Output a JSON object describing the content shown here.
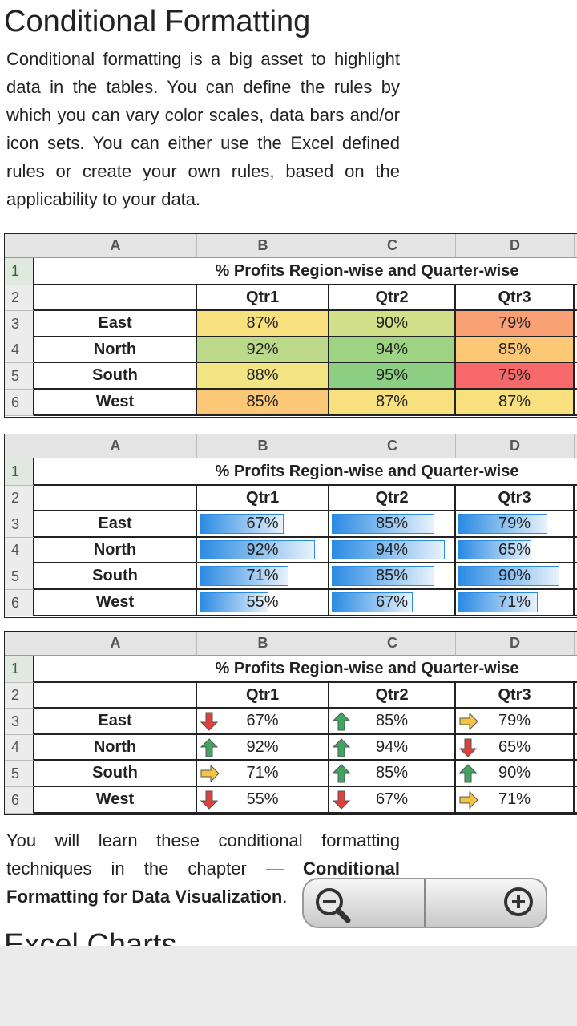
{
  "heading": "Conditional Formatting",
  "intro": "Conditional formatting is a big asset to highlight data in the tables. You can define the rules by which you can vary color scales, data bars and/or icon sets. You can either use the Excel defined rules or create your own rules, based on the applicability to your data.",
  "tables": [
    {
      "style": "color-scale",
      "columns": [
        "A",
        "B",
        "C",
        "D"
      ],
      "row_numbers": [
        1,
        2,
        3,
        4,
        5,
        6
      ],
      "title": "% Profits Region-wise and Quarter-wise",
      "quarters": [
        "Qtr1",
        "Qtr2",
        "Qtr3"
      ],
      "rows": [
        {
          "region": "East",
          "values": [
            "87%",
            "90%",
            "79%"
          ],
          "colors": [
            "#f9e07e",
            "#d3e08a",
            "#f9a074"
          ]
        },
        {
          "region": "North",
          "values": [
            "92%",
            "94%",
            "85%"
          ],
          "colors": [
            "#bcd98a",
            "#9fd384",
            "#fcc876"
          ]
        },
        {
          "region": "South",
          "values": [
            "88%",
            "95%",
            "75%"
          ],
          "colors": [
            "#f3e584",
            "#8ccf83",
            "#f8696b"
          ]
        },
        {
          "region": "West",
          "values": [
            "85%",
            "87%",
            "87%"
          ],
          "colors": [
            "#fbc878",
            "#f9e07e",
            "#f9e07e"
          ]
        }
      ]
    },
    {
      "style": "data-bars",
      "bar_color": "#2b8be3",
      "columns": [
        "A",
        "B",
        "C",
        "D"
      ],
      "row_numbers": [
        1,
        2,
        3,
        4,
        5,
        6
      ],
      "title": "% Profits Region-wise and Quarter-wise",
      "quarters": [
        "Qtr1",
        "Qtr2",
        "Qtr3"
      ],
      "rows": [
        {
          "region": "East",
          "values": [
            "67%",
            "85%",
            "79%"
          ]
        },
        {
          "region": "North",
          "values": [
            "92%",
            "94%",
            "65%"
          ]
        },
        {
          "region": "South",
          "values": [
            "71%",
            "85%",
            "90%"
          ]
        },
        {
          "region": "West",
          "values": [
            "55%",
            "67%",
            "71%"
          ]
        }
      ]
    },
    {
      "style": "icon-sets",
      "columns": [
        "A",
        "B",
        "C",
        "D"
      ],
      "row_numbers": [
        1,
        2,
        3,
        4,
        5,
        6
      ],
      "title": "% Profits Region-wise and Quarter-wise",
      "quarters": [
        "Qtr1",
        "Qtr2",
        "Qtr3"
      ],
      "rows": [
        {
          "region": "East",
          "values": [
            "67%",
            "85%",
            "79%"
          ],
          "icons": [
            "down",
            "up",
            "right"
          ]
        },
        {
          "region": "North",
          "values": [
            "92%",
            "94%",
            "65%"
          ],
          "icons": [
            "up",
            "up",
            "down"
          ]
        },
        {
          "region": "South",
          "values": [
            "71%",
            "85%",
            "90%"
          ],
          "icons": [
            "right",
            "up",
            "up"
          ]
        },
        {
          "region": "West",
          "values": [
            "55%",
            "67%",
            "71%"
          ],
          "icons": [
            "down",
            "down",
            "right"
          ]
        }
      ]
    }
  ],
  "outro": {
    "text": "You will learn these conditional formatting techniques in the chapter — ",
    "link": "Conditional Formatting for Data Visualization",
    "end": "."
  },
  "next_heading": "Excel Charts"
}
